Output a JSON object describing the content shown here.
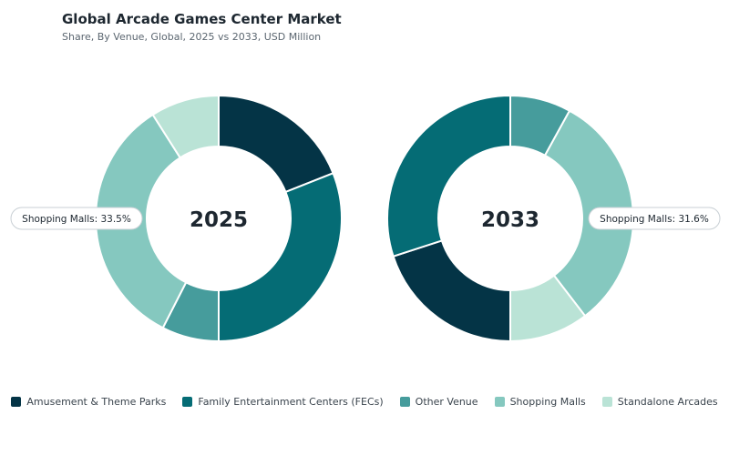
{
  "title": "Global Arcade Games Center Market",
  "subtitle": "Share, By Venue, Global, 2025 vs 2033, USD Million",
  "colors": {
    "Amusement & Theme Parks": "#043446",
    "Family Entertainment Centers (FECs)": "#056c75",
    "Other Venue": "#469c9c",
    "Shopping Malls": "#85c8bf",
    "Standalone Arcades": "#bae3d6"
  },
  "chart_data": [
    {
      "type": "pie",
      "title": "2025",
      "categories": [
        "Amusement & Theme Parks",
        "Family Entertainment Centers (FECs)",
        "Other Venue",
        "Shopping Malls",
        "Standalone Arcades"
      ],
      "values": [
        19.0,
        31.0,
        7.5,
        33.5,
        9.0
      ],
      "callout": "Shopping Malls: 33.5%"
    },
    {
      "type": "pie",
      "title": "2033",
      "categories": [
        "Other Venue",
        "Shopping Malls",
        "Standalone Arcades",
        "Amusement & Theme Parks",
        "Family Entertainment Centers (FECs)"
      ],
      "values": [
        8.0,
        31.6,
        10.4,
        20.0,
        30.0
      ],
      "callout": "Shopping Malls: 31.6%"
    }
  ],
  "legend": [
    {
      "label": "Amusement & Theme Parks",
      "color": "#043446"
    },
    {
      "label": "Family Entertainment Centers (FECs)",
      "color": "#056c75"
    },
    {
      "label": "Other Venue",
      "color": "#469c9c"
    },
    {
      "label": "Shopping Malls",
      "color": "#85c8bf"
    },
    {
      "label": "Standalone Arcades",
      "color": "#bae3d6"
    }
  ]
}
